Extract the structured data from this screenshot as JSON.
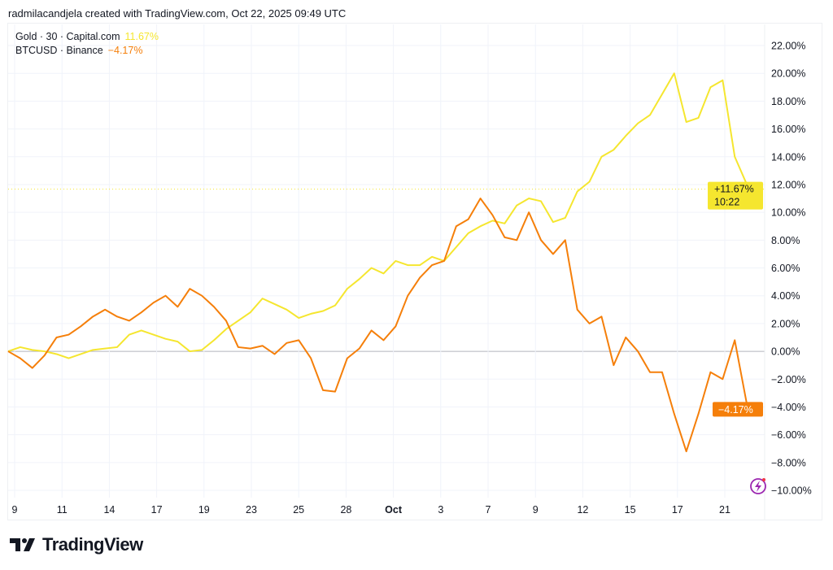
{
  "header": {
    "text": "radmilacandjela created with TradingView.com, Oct 22, 2025 09:49 UTC"
  },
  "legend": [
    {
      "label": "Gold · 30 · Capital.com",
      "value": "11.67%",
      "color": "#f5e62f"
    },
    {
      "label": "BTCUSD · Binance",
      "value": "−4.17%",
      "color": "#f57f0a"
    }
  ],
  "logo": {
    "text": "TradingView"
  },
  "chart_data": {
    "type": "line",
    "ylim": [
      -10,
      22
    ],
    "y_ticks": [
      22,
      20,
      18,
      16,
      14,
      12,
      10,
      8,
      6,
      4,
      2,
      0,
      -2,
      -4,
      -6,
      -8,
      -10
    ],
    "y_tick_labels": [
      "22.00%",
      "20.00%",
      "18.00%",
      "16.00%",
      "14.00%",
      "12.00%",
      "10.00%",
      "8.00%",
      "6.00%",
      "4.00%",
      "2.00%",
      "0.00%",
      "−2.00%",
      "−4.00%",
      "−6.00%",
      "−8.00%",
      "−10.00%"
    ],
    "x_tick_labels": [
      "9",
      "11",
      "14",
      "17",
      "19",
      "23",
      "25",
      "28",
      "Oct",
      "3",
      "7",
      "9",
      "12",
      "15",
      "17",
      "21"
    ],
    "grid": true,
    "legend_placement": "top-left",
    "series": [
      {
        "name": "Gold · 30 · Capital.com",
        "color": "#f5e62f",
        "last_label": "+11.67%",
        "countdown": "10:22",
        "values": [
          0,
          0.3,
          0.1,
          0,
          -0.2,
          -0.5,
          -0.2,
          0.1,
          0.2,
          0.3,
          1.2,
          1.5,
          1.2,
          0.9,
          0.7,
          0,
          0.1,
          0.8,
          1.6,
          2.2,
          2.8,
          3.8,
          3.4,
          3.0,
          2.4,
          2.7,
          2.9,
          3.3,
          4.5,
          5.2,
          6.0,
          5.6,
          6.5,
          6.2,
          6.2,
          6.8,
          6.5,
          7.5,
          8.5,
          9.0,
          9.4,
          9.2,
          10.5,
          11.0,
          10.8,
          9.3,
          9.6,
          11.5,
          12.2,
          14.0,
          14.5,
          15.5,
          16.4,
          17.0,
          18.5,
          20.0,
          16.5,
          16.8,
          19.0,
          19.5,
          14.0,
          12.0,
          11.67
        ]
      },
      {
        "name": "BTCUSD · Binance",
        "color": "#f57f0a",
        "last_label": "−4.17%",
        "values": [
          0,
          -0.5,
          -1.2,
          -0.3,
          1.0,
          1.2,
          1.8,
          2.5,
          3.0,
          2.5,
          2.2,
          2.8,
          3.5,
          4.0,
          3.2,
          4.5,
          4.0,
          3.2,
          2.2,
          0.3,
          0.2,
          0.4,
          -0.2,
          0.6,
          0.8,
          -0.5,
          -2.8,
          -2.9,
          -0.5,
          0.2,
          1.5,
          0.8,
          1.8,
          4.0,
          5.3,
          6.2,
          6.5,
          9.0,
          9.5,
          11.0,
          9.8,
          8.2,
          8.0,
          10.0,
          8.0,
          7.0,
          8.0,
          3.0,
          2.0,
          2.5,
          -1.0,
          1.0,
          0,
          -1.5,
          -1.5,
          -4.5,
          -7.2,
          -4.5,
          -1.5,
          -2.0,
          0.8,
          -3.8,
          -4.17
        ]
      }
    ]
  }
}
